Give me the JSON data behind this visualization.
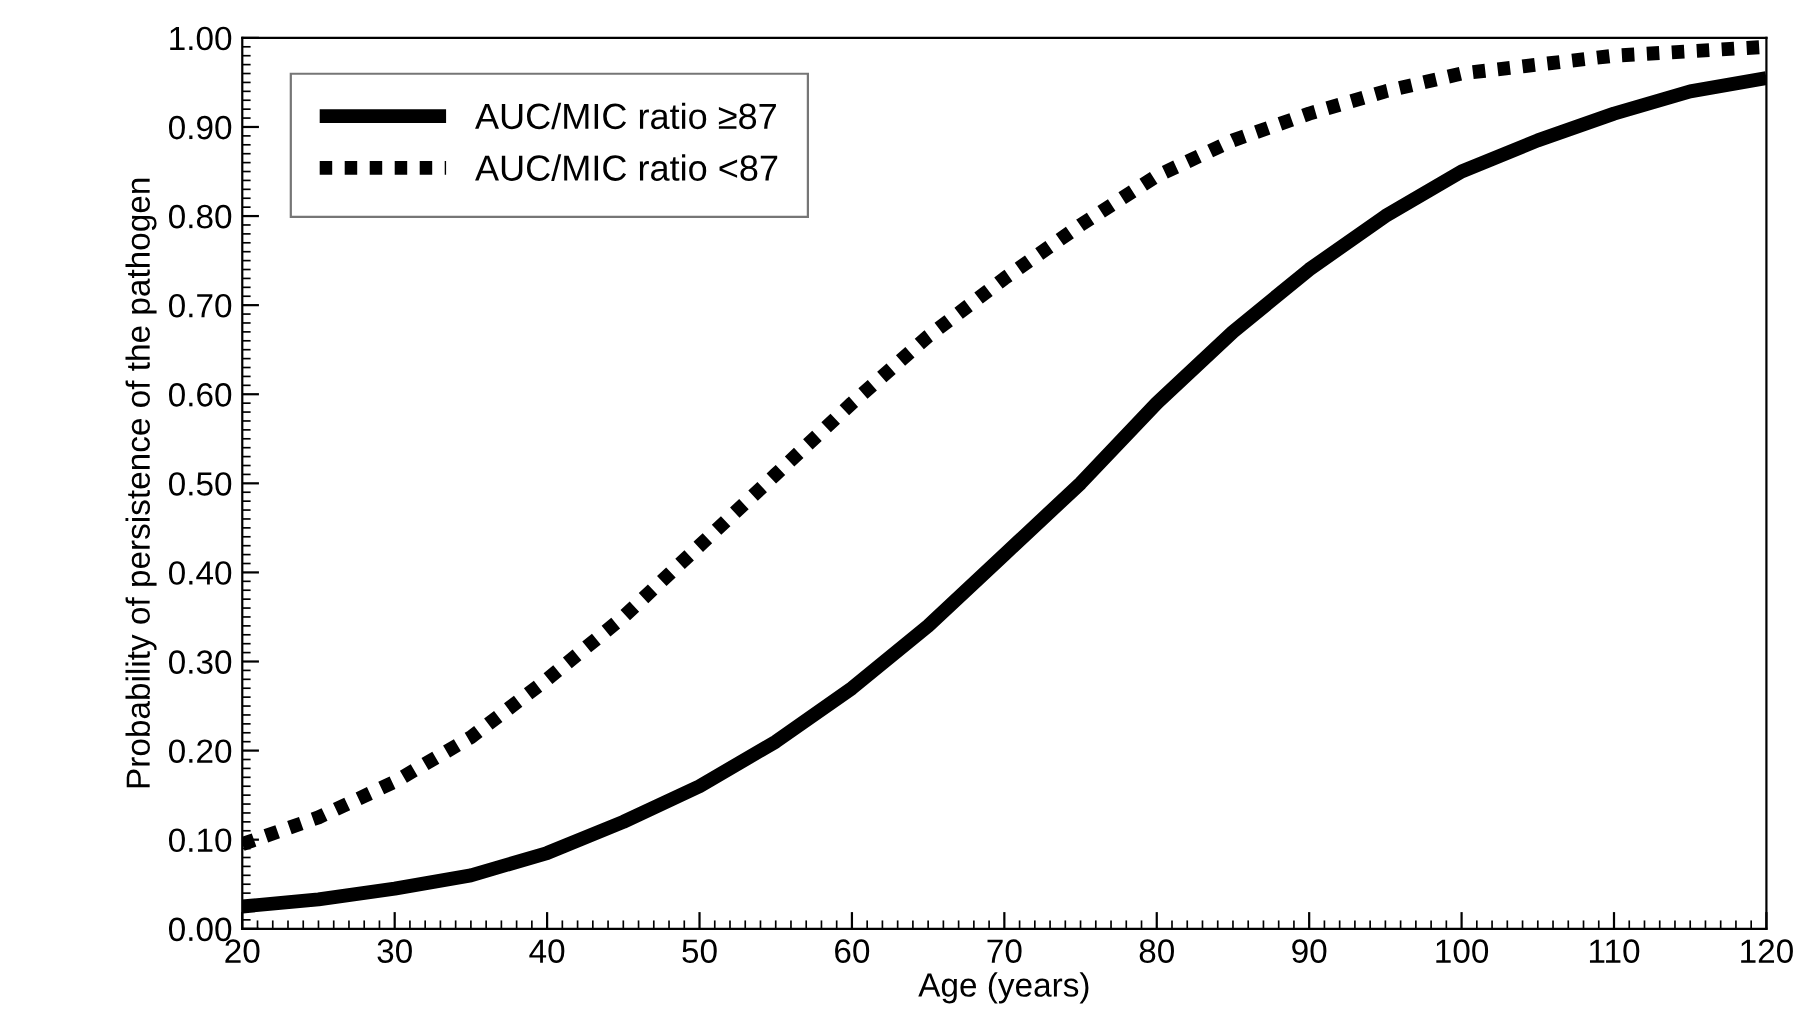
{
  "chart_data": {
    "type": "line",
    "xlabel": "Age (years)",
    "ylabel": "Probability of persistence of the pathogen",
    "x": [
      20,
      25,
      30,
      35,
      40,
      45,
      50,
      55,
      60,
      65,
      70,
      75,
      80,
      85,
      90,
      95,
      100,
      105,
      110,
      115,
      120
    ],
    "series": [
      {
        "name": "AUC/MIC ratio ≥87",
        "color": "#000000",
        "line_style": "solid",
        "values": [
          0.025,
          0.033,
          0.045,
          0.06,
          0.085,
          0.12,
          0.16,
          0.21,
          0.27,
          0.34,
          0.42,
          0.5,
          0.59,
          0.67,
          0.74,
          0.8,
          0.85,
          0.885,
          0.915,
          0.94,
          0.955
        ]
      },
      {
        "name": "AUC/MIC ratio <87",
        "color": "#000000",
        "line_style": "dotted",
        "values": [
          0.095,
          0.125,
          0.165,
          0.215,
          0.28,
          0.35,
          0.43,
          0.51,
          0.59,
          0.665,
          0.73,
          0.79,
          0.845,
          0.885,
          0.915,
          0.94,
          0.96,
          0.97,
          0.98,
          0.985,
          0.99
        ]
      }
    ],
    "xlim": [
      20,
      120
    ],
    "ylim": [
      0,
      1
    ],
    "xticks": [
      20,
      30,
      40,
      50,
      60,
      70,
      80,
      90,
      100,
      110,
      120
    ],
    "yticks": [
      {
        "value": 0,
        "label": "0.00"
      },
      {
        "value": 0.1,
        "label": "0.10"
      },
      {
        "value": 0.2,
        "label": "0.20"
      },
      {
        "value": 0.3,
        "label": "0.30"
      },
      {
        "value": 0.4,
        "label": "0.40"
      },
      {
        "value": 0.5,
        "label": "0.50"
      },
      {
        "value": 0.6,
        "label": "0.60"
      },
      {
        "value": 0.7,
        "label": "0.70"
      },
      {
        "value": 0.8,
        "label": "0.80"
      },
      {
        "value": 0.9,
        "label": "0.90"
      },
      {
        "value": 1,
        "label": "1.00"
      }
    ],
    "grid": false,
    "legend": "top left",
    "marker": "none"
  }
}
